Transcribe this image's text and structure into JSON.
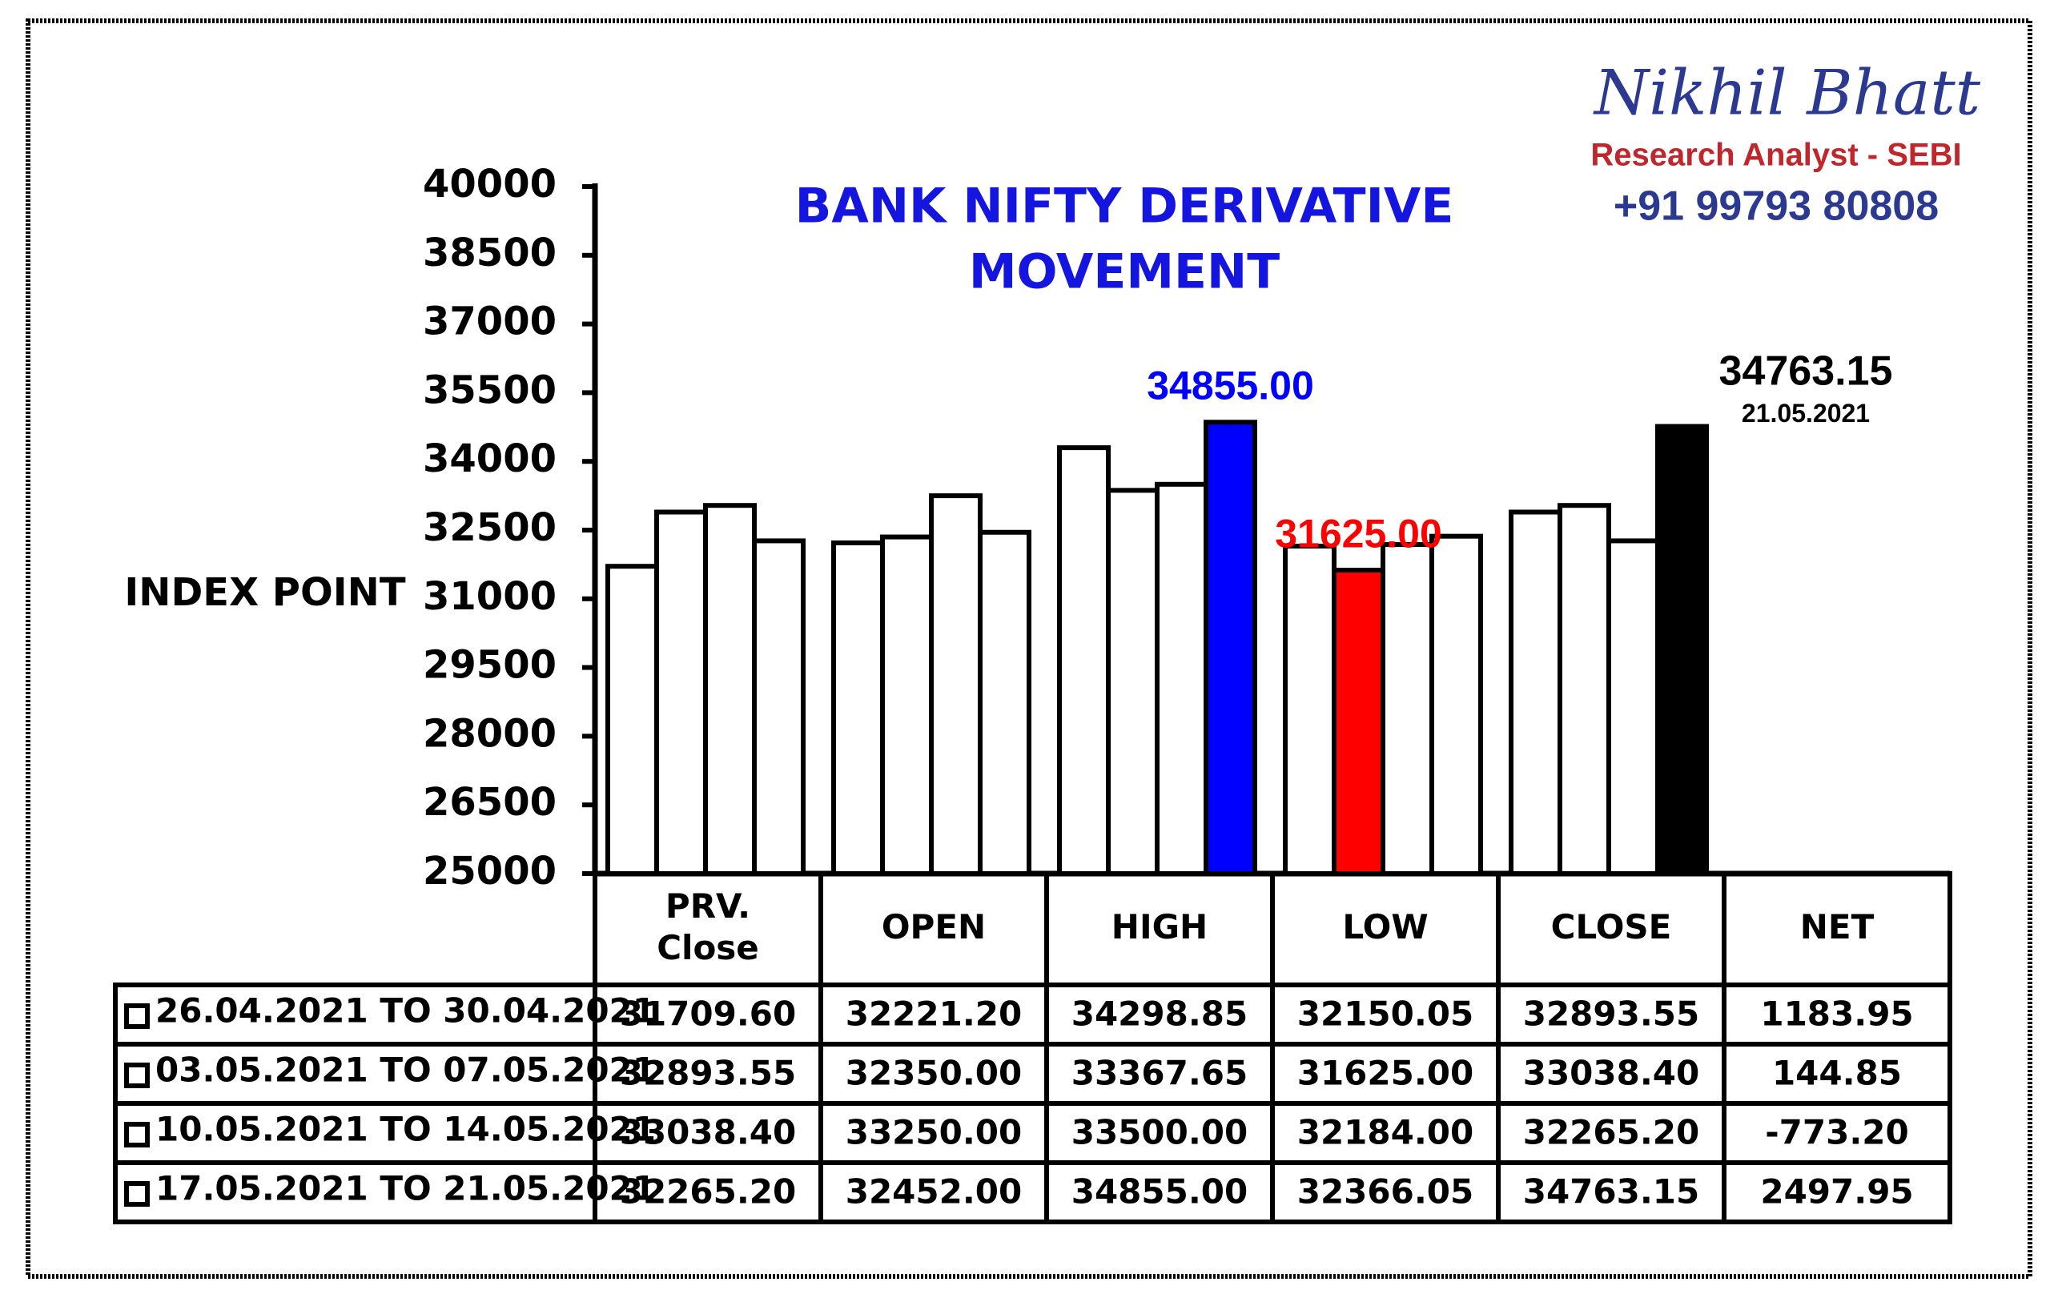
{
  "chart_data": {
    "type": "bar",
    "title": [
      "BANK NIFTY DERIVATIVE",
      "MOVEMENT"
    ],
    "ylabel": "INDEX POINT",
    "categories": [
      [
        "PRV.",
        "Close"
      ],
      [
        "OPEN"
      ],
      [
        "HIGH"
      ],
      [
        "LOW"
      ],
      [
        "CLOSE"
      ]
    ],
    "net_header": "NET",
    "ylim": [
      25000,
      40000
    ],
    "yticks": [
      25000,
      26500,
      28000,
      29500,
      31000,
      32500,
      34000,
      35500,
      37000,
      38500,
      40000
    ],
    "series": [
      {
        "name": "26.04.2021 TO 30.04.2021",
        "values": [
          31709.6,
          32221.2,
          34298.85,
          32150.05,
          32893.55
        ],
        "value_labels": [
          "31709.60",
          "32221.20",
          "34298.85",
          "32150.05",
          "32893.55"
        ],
        "net": 1183.95,
        "colors": [
          "#ffffff",
          "#ffffff",
          "#ffffff",
          "#ffffff",
          "#ffffff"
        ]
      },
      {
        "name": "03.05.2021 TO 07.05.2021",
        "values": [
          32893.55,
          32350,
          33367.65,
          31625,
          33038.4
        ],
        "value_labels": [
          "32893.55",
          "32350.00",
          "33367.65",
          "31625.00",
          "33038.40"
        ],
        "net": 144.85,
        "colors": [
          "#ffffff",
          "#ffffff",
          "#ffffff",
          "#ff0000",
          "#ffffff"
        ]
      },
      {
        "name": "10.05.2021 TO 14.05.2021",
        "values": [
          33038.4,
          33250,
          33500,
          32184,
          32265.2
        ],
        "value_labels": [
          "33038.40",
          "33250.00",
          "33500.00",
          "32184.00",
          "32265.20"
        ],
        "net": -773.2,
        "net_label": "-773.20",
        "colors": [
          "#ffffff",
          "#ffffff",
          "#ffffff",
          "#ffffff",
          "#ffffff"
        ]
      },
      {
        "name": "17.05.2021 TO 21.05.2021",
        "values": [
          32265.2,
          32452,
          34855,
          32366.05,
          34763.15
        ],
        "value_labels": [
          "32265.20",
          "32452.00",
          "34855.00",
          "32366.05",
          "34763.15"
        ],
        "net": 2497.95,
        "colors": [
          "#ffffff",
          "#ffffff",
          "#0000ff",
          "#ffffff",
          "#000000"
        ]
      }
    ],
    "annotations": [
      {
        "series": 3,
        "category": 2,
        "color": "#0000ff",
        "position": "top"
      },
      {
        "series": 1,
        "category": 3,
        "color": "#ff0000",
        "position": "top"
      },
      {
        "series": 3,
        "category": 4,
        "color": "#000000",
        "position": "right",
        "sublabel": "21.05.2021"
      }
    ]
  },
  "branding": {
    "name": "Nikhil Bhatt",
    "role": "Research Analyst - SEBI",
    "phone": "+91 99793 80808"
  }
}
